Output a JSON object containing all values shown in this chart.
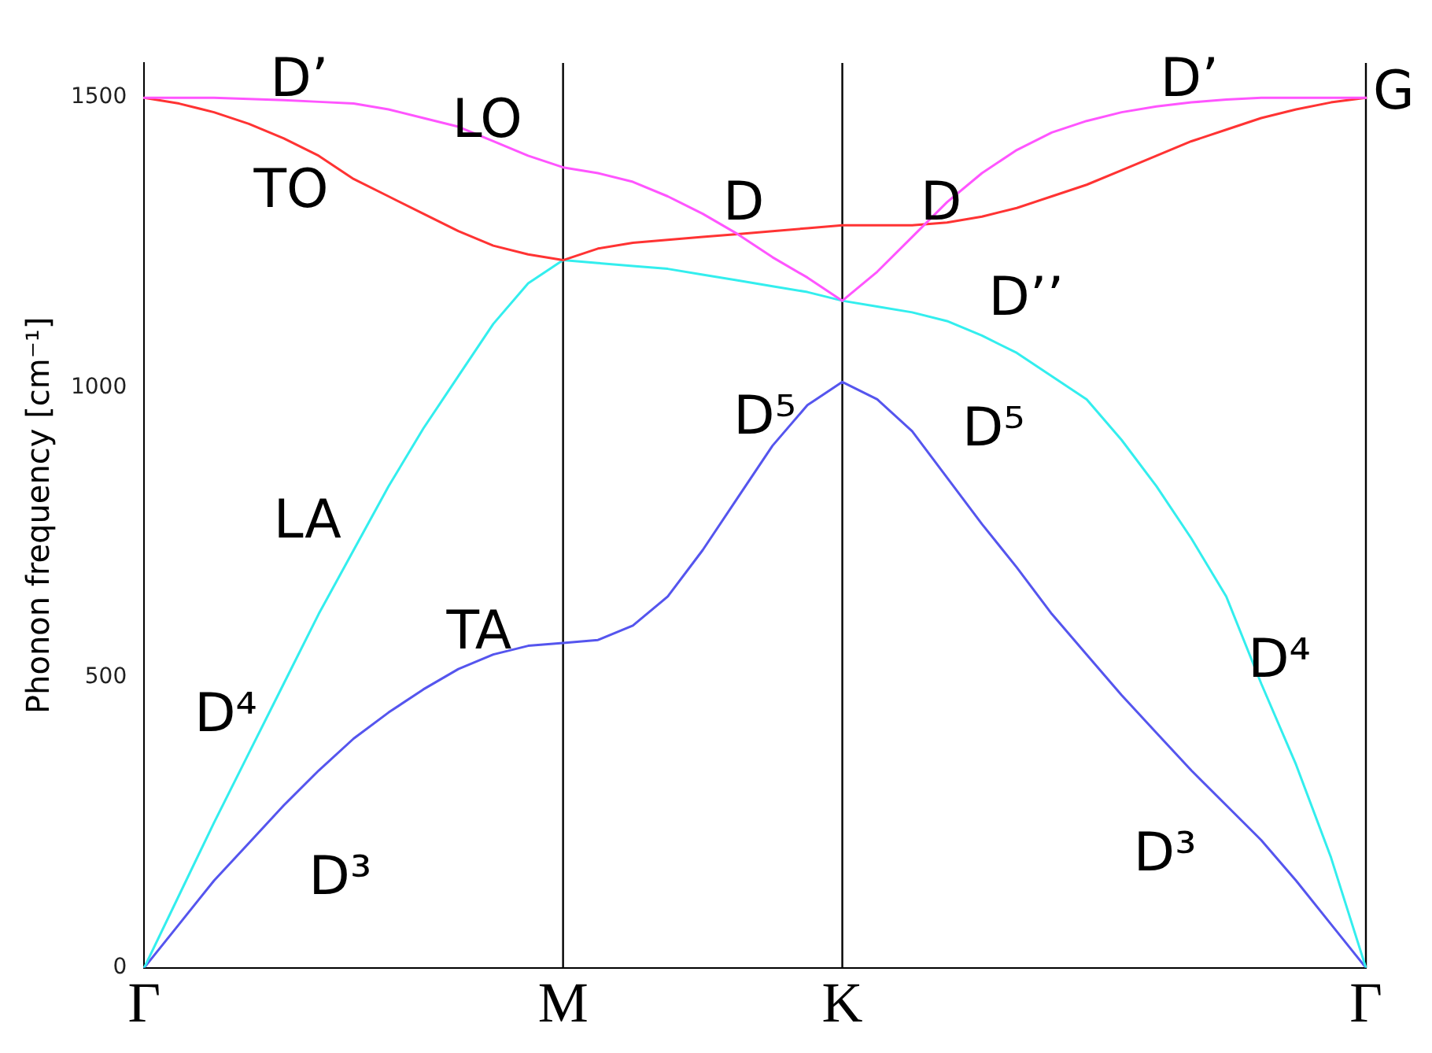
{
  "chart_data": {
    "type": "line",
    "ylabel": "Phonon frequency [cm⁻¹]",
    "categories": [
      "Γ",
      null,
      null,
      null,
      null,
      null,
      null,
      null,
      null,
      null,
      null,
      null,
      "M",
      null,
      null,
      null,
      null,
      null,
      null,
      null,
      "K",
      null,
      null,
      null,
      null,
      null,
      null,
      null,
      null,
      null,
      null,
      null,
      null,
      null,
      null,
      "Γ"
    ],
    "ylim": [
      0,
      1560
    ],
    "yticks": [
      0,
      500,
      1000,
      1500
    ],
    "marker": "none",
    "legend": false,
    "ref_lines": [
      {
        "axis": "x",
        "value": "M",
        "color": "#000000"
      },
      {
        "axis": "x",
        "value": "K",
        "color": "#000000"
      }
    ],
    "series": [
      {
        "color": "#ff55ff",
        "values": [
          1500,
          1500,
          1500,
          1498,
          1496,
          1493,
          1490,
          1480,
          1465,
          1450,
          1425,
          1400,
          1380,
          1370,
          1355,
          1330,
          1300,
          1265,
          1225,
          1190,
          1150,
          1200,
          1260,
          1320,
          1370,
          1410,
          1440,
          1460,
          1475,
          1485,
          1492,
          1497,
          1500,
          1500,
          1500,
          1500
        ]
      },
      {
        "color": "#ff3333",
        "values": [
          1500,
          1490,
          1475,
          1455,
          1430,
          1400,
          1360,
          1330,
          1300,
          1270,
          1245,
          1230,
          1220,
          1240,
          1250,
          1255,
          1260,
          1265,
          1270,
          1275,
          1280,
          1280,
          1280,
          1285,
          1295,
          1310,
          1330,
          1350,
          1375,
          1400,
          1425,
          1445,
          1465,
          1480,
          1492,
          1500
        ]
      },
      {
        "color": "#33eeee",
        "values": [
          0,
          125,
          250,
          370,
          490,
          610,
          720,
          830,
          930,
          1020,
          1110,
          1180,
          1220,
          1215,
          1210,
          1205,
          1195,
          1185,
          1175,
          1165,
          1150,
          1140,
          1130,
          1115,
          1090,
          1060,
          1020,
          980,
          910,
          830,
          740,
          640,
          490,
          350,
          190,
          0
        ]
      },
      {
        "color": "#5555ee",
        "values": [
          0,
          75,
          150,
          215,
          280,
          340,
          395,
          440,
          480,
          515,
          540,
          555,
          560,
          565,
          590,
          640,
          720,
          810,
          900,
          970,
          1010,
          980,
          925,
          845,
          765,
          690,
          610,
          540,
          470,
          405,
          340,
          280,
          220,
          150,
          75,
          0
        ]
      }
    ],
    "annotations": [
      "D’",
      "LO",
      "TO",
      "D",
      "D",
      "D’",
      "D’’",
      "LA",
      "TA",
      "D⁵",
      "D⁵",
      "D⁴",
      "D⁴",
      "D³",
      "D³",
      "G"
    ]
  }
}
